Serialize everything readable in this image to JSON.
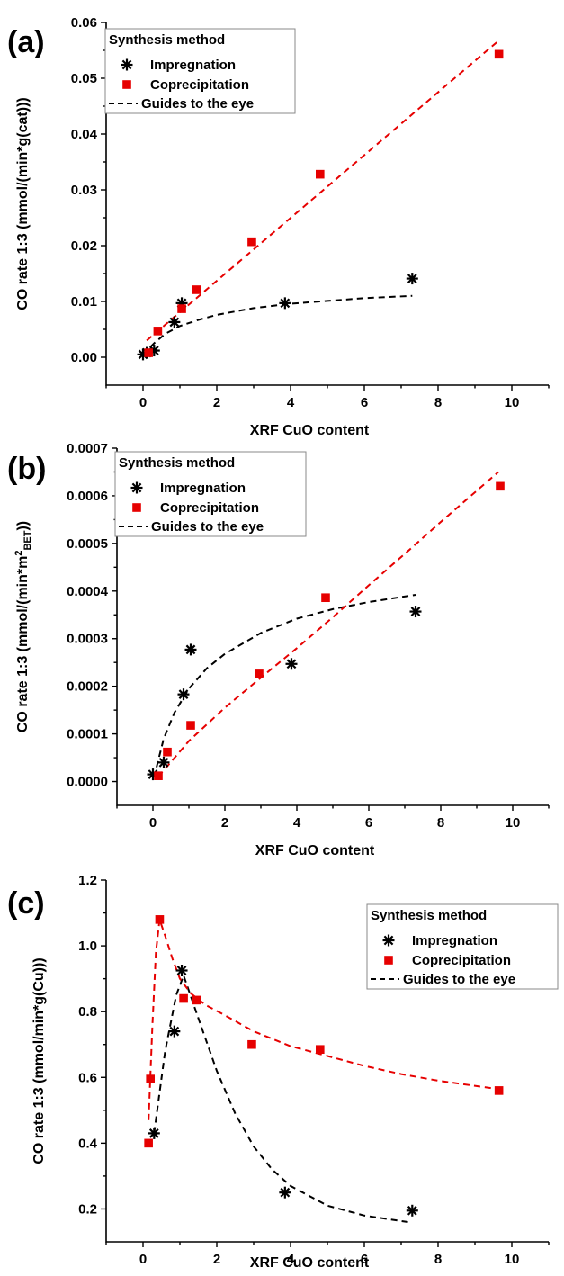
{
  "chart_data": [
    {
      "type": "scatter",
      "panel_label": "(a)",
      "xlabel": "XRF CuO content",
      "ylabel": "CO rate 1:3 (mmol/(min*g(cat)))",
      "xlim": [
        -1,
        11
      ],
      "ylim": [
        -0.005,
        0.06
      ],
      "xticks": [
        0,
        2,
        4,
        6,
        8,
        10
      ],
      "xtick_labels": [
        "0",
        "2",
        "4",
        "6",
        "8",
        "10"
      ],
      "yticks": [
        0,
        0.01,
        0.02,
        0.03,
        0.04,
        0.05,
        0.06
      ],
      "ytick_labels": [
        "0.00",
        "0.01",
        "0.02",
        "0.03",
        "0.04",
        "0.05",
        "0.06"
      ],
      "legend": {
        "title": "Synthesis method",
        "placement": "top-left",
        "entries": [
          "Impregnation",
          "Coprecipitation",
          "Guides to the eye"
        ]
      },
      "series": [
        {
          "name": "Impregnation",
          "marker": "asterisk",
          "color": "#000000",
          "x": [
            0.0,
            0.1,
            0.3,
            0.85,
            1.05,
            3.85,
            7.3
          ],
          "y": [
            0.0005,
            0.0008,
            0.0012,
            0.0063,
            0.0097,
            0.0097,
            0.0141
          ]
        },
        {
          "name": "Coprecipitation",
          "marker": "square",
          "color": "#e60000",
          "x": [
            0.15,
            0.4,
            1.05,
            1.45,
            2.95,
            4.8,
            9.65
          ],
          "y": [
            0.0008,
            0.0047,
            0.0087,
            0.0121,
            0.0207,
            0.0328,
            0.0543
          ]
        }
      ],
      "guides": [
        {
          "color": "#000000",
          "x": [
            0.0,
            0.3,
            0.6,
            1.0,
            1.5,
            2.0,
            3.0,
            4.0,
            5.0,
            6.0,
            7.3
          ],
          "y": [
            0.0005,
            0.0025,
            0.0042,
            0.0056,
            0.0067,
            0.0076,
            0.0088,
            0.0096,
            0.0101,
            0.0106,
            0.011
          ]
        },
        {
          "color": "#e60000",
          "x": [
            0.1,
            9.6
          ],
          "y": [
            0.003,
            0.0565
          ]
        }
      ]
    },
    {
      "type": "scatter",
      "panel_label": "(b)",
      "xlabel": "XRF CuO content",
      "ylabel_main": "CO rate 1:3 (mmol/(min*m",
      "ylabel_sup": "2",
      "ylabel_sub": "BET",
      "ylabel_end": "))",
      "xlim": [
        -1,
        11
      ],
      "ylim": [
        -5e-05,
        0.0007
      ],
      "xticks": [
        0,
        2,
        4,
        6,
        8,
        10
      ],
      "xtick_labels": [
        "0",
        "2",
        "4",
        "6",
        "8",
        "10"
      ],
      "yticks": [
        0,
        0.0001,
        0.0002,
        0.0003,
        0.0004,
        0.0005,
        0.0006,
        0.0007
      ],
      "ytick_labels": [
        "0.0000",
        "0.0001",
        "0.0002",
        "0.0003",
        "0.0004",
        "0.0005",
        "0.0006",
        "0.0007"
      ],
      "legend": {
        "title": "Synthesis method",
        "placement": "top-left",
        "entries": [
          "Impregnation",
          "Coprecipitation",
          "Guides to the eye"
        ]
      },
      "series": [
        {
          "name": "Impregnation",
          "marker": "asterisk",
          "color": "#000000",
          "x": [
            0.0,
            0.3,
            0.85,
            1.05,
            3.85,
            7.3
          ],
          "y": [
            1.5e-05,
            4e-05,
            0.000183,
            0.000277,
            0.000247,
            0.000357
          ]
        },
        {
          "name": "Coprecipitation",
          "marker": "square",
          "color": "#e60000",
          "x": [
            0.15,
            0.4,
            1.05,
            2.95,
            4.8,
            9.65
          ],
          "y": [
            1.2e-05,
            6.2e-05,
            0.000118,
            0.000226,
            0.000386,
            0.00062
          ]
        }
      ],
      "guides": [
        {
          "color": "#000000",
          "x": [
            0.1,
            0.3,
            0.6,
            1.0,
            1.5,
            2.0,
            3.0,
            4.0,
            5.0,
            6.0,
            7.3
          ],
          "y": [
            3e-05,
            9e-05,
            0.000145,
            0.000195,
            0.000238,
            0.000268,
            0.000312,
            0.000342,
            0.000362,
            0.000377,
            0.000392
          ]
        },
        {
          "color": "#e60000",
          "x": [
            0.15,
            1.0,
            2.0,
            3.0,
            4.0,
            5.0,
            6.0,
            7.0,
            8.0,
            9.6
          ],
          "y": [
            1e-05,
            8.5e-05,
            0.000155,
            0.000218,
            0.00028,
            0.000345,
            0.000412,
            0.000478,
            0.000545,
            0.00065
          ]
        }
      ]
    },
    {
      "type": "scatter",
      "panel_label": "(c)",
      "xlabel": "XRF CuO content",
      "ylabel": "CO rate 1:3 (mmol/min*g(Cu)))",
      "xlim": [
        -1,
        11
      ],
      "ylim": [
        0.1,
        1.2
      ],
      "xticks": [
        0,
        2,
        4,
        6,
        8,
        10
      ],
      "xtick_labels": [
        "0",
        "2",
        "4",
        "6",
        "8",
        "10"
      ],
      "yticks": [
        0.2,
        0.4,
        0.6,
        0.8,
        1.0,
        1.2
      ],
      "ytick_labels": [
        "0.2",
        "0.4",
        "0.6",
        "0.8",
        "1.0",
        "1.2"
      ],
      "legend": {
        "title": "Synthesis method",
        "placement": "top-right",
        "entries": [
          "Impregnation",
          "Coprecipitation",
          "Guides to the eye"
        ]
      },
      "series": [
        {
          "name": "Impregnation",
          "marker": "asterisk",
          "color": "#000000",
          "x": [
            0.3,
            0.85,
            1.05,
            3.85,
            7.3
          ],
          "y": [
            0.43,
            0.74,
            0.925,
            0.25,
            0.195
          ]
        },
        {
          "name": "Coprecipitation",
          "marker": "square",
          "color": "#e60000",
          "x": [
            0.15,
            0.2,
            0.45,
            1.1,
            1.45,
            2.95,
            4.8,
            9.65
          ],
          "y": [
            0.4,
            0.595,
            1.08,
            0.84,
            0.835,
            0.7,
            0.685,
            0.56
          ]
        }
      ],
      "guides": [
        {
          "color": "#000000",
          "x": [
            0.3,
            0.6,
            0.9,
            1.1,
            1.5,
            2.0,
            2.5,
            3.0,
            3.5,
            4.0,
            5.0,
            6.0,
            7.2
          ],
          "y": [
            0.43,
            0.68,
            0.85,
            0.91,
            0.78,
            0.62,
            0.49,
            0.39,
            0.32,
            0.27,
            0.21,
            0.18,
            0.16
          ]
        },
        {
          "color": "#e60000",
          "x": [
            0.15,
            0.25,
            0.35,
            0.45,
            0.6,
            0.8,
            1.0,
            1.3,
            1.7,
            2.2,
            3.0,
            4.0,
            5.0,
            6.0,
            7.0,
            8.0,
            9.6
          ],
          "y": [
            0.47,
            0.75,
            0.98,
            1.08,
            1.03,
            0.96,
            0.9,
            0.855,
            0.82,
            0.79,
            0.74,
            0.695,
            0.665,
            0.635,
            0.61,
            0.59,
            0.565
          ]
        }
      ]
    }
  ]
}
